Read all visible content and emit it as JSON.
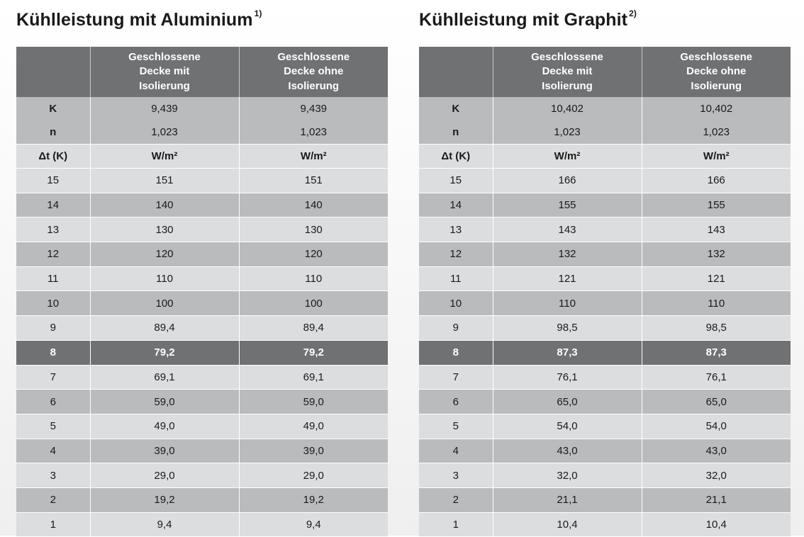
{
  "left": {
    "title": "Kühlleistung mit Aluminium",
    "footnote": "1)",
    "headers": [
      "",
      "Geschlossene Decke mit Isolierung",
      "Geschlossene Decke ohne Isolierung"
    ],
    "k_label": "K",
    "k_values": [
      "9,439",
      "9,439"
    ],
    "n_label": "n",
    "n_values": [
      "1,023",
      "1,023"
    ],
    "unit_label": "Δt (K)",
    "unit_values": [
      "W/m²",
      "W/m²"
    ],
    "rows": [
      [
        "15",
        "151",
        "151"
      ],
      [
        "14",
        "140",
        "140"
      ],
      [
        "13",
        "130",
        "130"
      ],
      [
        "12",
        "120",
        "120"
      ],
      [
        "11",
        "110",
        "110"
      ],
      [
        "10",
        "100",
        "100"
      ],
      [
        "9",
        "89,4",
        "89,4"
      ],
      [
        "8",
        "79,2",
        "79,2"
      ],
      [
        "7",
        "69,1",
        "69,1"
      ],
      [
        "6",
        "59,0",
        "59,0"
      ],
      [
        "5",
        "49,0",
        "49,0"
      ],
      [
        "4",
        "39,0",
        "39,0"
      ],
      [
        "3",
        "29,0",
        "29,0"
      ],
      [
        "2",
        "19,2",
        "19,2"
      ],
      [
        "1",
        "9,4",
        "9,4"
      ]
    ]
  },
  "right": {
    "title": "Kühlleistung mit Graphit",
    "footnote": "2)",
    "headers": [
      "",
      "Geschlossene Decke mit Isolierung",
      "Geschlossene Decke ohne Isolierung"
    ],
    "k_label": "K",
    "k_values": [
      "10,402",
      "10,402"
    ],
    "n_label": "n",
    "n_values": [
      "1,023",
      "1,023"
    ],
    "unit_label": "Δt (K)",
    "unit_values": [
      "W/m²",
      "W/m²"
    ],
    "rows": [
      [
        "15",
        "166",
        "166"
      ],
      [
        "14",
        "155",
        "155"
      ],
      [
        "13",
        "143",
        "143"
      ],
      [
        "12",
        "132",
        "132"
      ],
      [
        "11",
        "121",
        "121"
      ],
      [
        "10",
        "110",
        "110"
      ],
      [
        "9",
        "98,5",
        "98,5"
      ],
      [
        "8",
        "87,3",
        "87,3"
      ],
      [
        "7",
        "76,1",
        "76,1"
      ],
      [
        "6",
        "65,0",
        "65,0"
      ],
      [
        "5",
        "54,0",
        "54,0"
      ],
      [
        "4",
        "43,0",
        "43,0"
      ],
      [
        "3",
        "32,0",
        "32,0"
      ],
      [
        "2",
        "21,1",
        "21,1"
      ],
      [
        "1",
        "10,4",
        "10,4"
      ]
    ]
  },
  "highlight_row_label": "8",
  "colors": {
    "header_bg": "#6f7173",
    "row_dark": "#b9bbbd",
    "row_light": "#dcdddf",
    "highlight": "#6f7173"
  }
}
